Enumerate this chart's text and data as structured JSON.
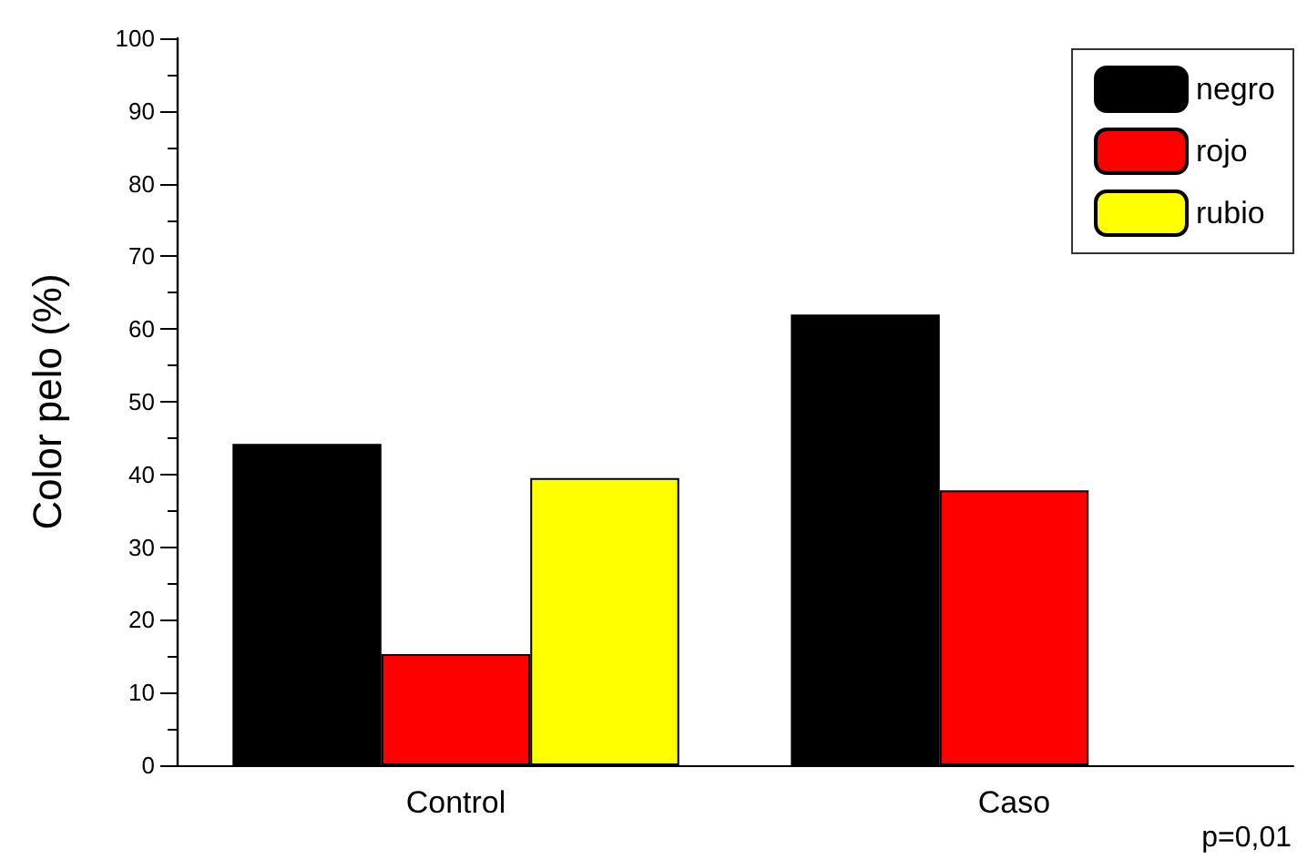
{
  "chart_data": {
    "type": "bar",
    "ylabel": "Color pelo (%)",
    "categories": [
      "Control",
      "Caso"
    ],
    "series": [
      {
        "name": "negro",
        "color": "#000000",
        "values": [
          44.2,
          62.0
        ]
      },
      {
        "name": "rojo",
        "color": "#ff0000",
        "values": [
          15.3,
          37.8
        ]
      },
      {
        "name": "rubio",
        "color": "#ffff00",
        "values": [
          39.5,
          null
        ]
      }
    ],
    "ylim": [
      0,
      100
    ],
    "yticks": [
      0,
      10,
      20,
      30,
      40,
      50,
      60,
      70,
      80,
      90,
      100
    ],
    "legend": "top right",
    "grid": false,
    "annotations": [
      "p=0,01"
    ]
  }
}
